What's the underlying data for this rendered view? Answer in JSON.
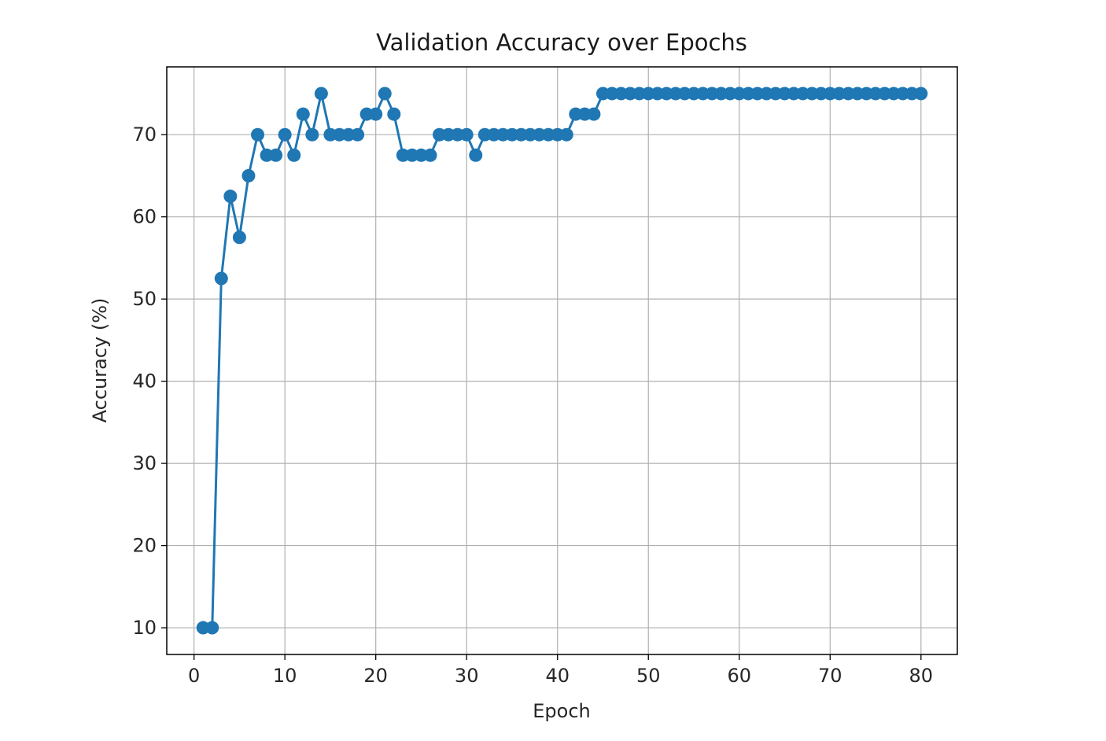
{
  "chart_data": {
    "type": "line",
    "title": "Validation Accuracy over Epochs",
    "xlabel": "Epoch",
    "ylabel": "Accuracy (%)",
    "xlim": [
      -3,
      84
    ],
    "ylim": [
      6.75,
      78.25
    ],
    "xticks": [
      0,
      10,
      20,
      30,
      40,
      50,
      60,
      70,
      80
    ],
    "yticks": [
      10,
      20,
      30,
      40,
      50,
      60,
      70
    ],
    "grid": true,
    "legend": "none",
    "colors": {
      "line": "#1f77b4",
      "grid": "#b0b0b0",
      "axes": "#000000"
    },
    "marker": "circle",
    "series": [
      {
        "x": [
          1,
          2,
          3,
          4,
          5,
          6,
          7,
          8,
          9,
          10,
          11,
          12,
          13,
          14,
          15,
          16,
          17,
          18,
          19,
          20,
          21,
          22,
          23,
          24,
          25,
          26,
          27,
          28,
          29,
          30,
          31,
          32,
          33,
          34,
          35,
          36,
          37,
          38,
          39,
          40,
          41,
          42,
          43,
          44,
          45,
          46,
          47,
          48,
          49,
          50,
          51,
          52,
          53,
          54,
          55,
          56,
          57,
          58,
          59,
          60,
          61,
          62,
          63,
          64,
          65,
          66,
          67,
          68,
          69,
          70,
          71,
          72,
          73,
          74,
          75,
          76,
          77,
          78,
          79,
          80
        ],
        "y": [
          10,
          10,
          52.5,
          62.5,
          57.5,
          65,
          70,
          67.5,
          67.5,
          70,
          67.5,
          72.5,
          70,
          75,
          70,
          70,
          70,
          70,
          72.5,
          72.5,
          75,
          72.5,
          67.5,
          67.5,
          67.5,
          67.5,
          70,
          70,
          70,
          70,
          67.5,
          70,
          70,
          70,
          70,
          70,
          70,
          70,
          70,
          70,
          70,
          72.5,
          72.5,
          72.5,
          75,
          75,
          75,
          75,
          75,
          75,
          75,
          75,
          75,
          75,
          75,
          75,
          75,
          75,
          75,
          75,
          75,
          75,
          75,
          75,
          75,
          75,
          75,
          75,
          75,
          75,
          75,
          75,
          75,
          75,
          75,
          75,
          75,
          75,
          75,
          75
        ]
      }
    ]
  }
}
